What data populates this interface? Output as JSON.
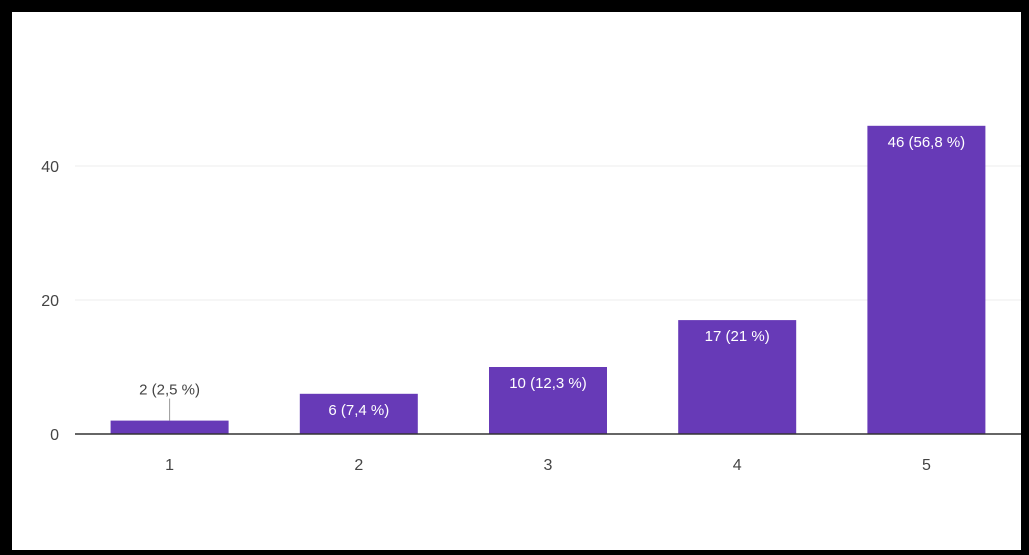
{
  "chart_data": {
    "type": "bar",
    "title": "",
    "xlabel": "",
    "ylabel": "",
    "categories": [
      "1",
      "2",
      "3",
      "4",
      "5"
    ],
    "values": [
      2,
      6,
      10,
      17,
      46
    ],
    "data_labels": [
      "2 (2,5 %)",
      "6 (7,4 %)",
      "10 (12,3 %)",
      "17 (21 %)",
      "46 (56,8 %)"
    ],
    "ylim": [
      0,
      50
    ],
    "yticks": [
      0,
      20,
      40
    ],
    "ytick_labels": [
      "0",
      "20",
      "40"
    ],
    "grid": true,
    "legend": "none",
    "colors": {
      "bar": "#673ab7",
      "label_inside": "#ffffff",
      "label_outside": "#444444",
      "grid": "#eeeeee",
      "baseline": "#333333"
    }
  }
}
